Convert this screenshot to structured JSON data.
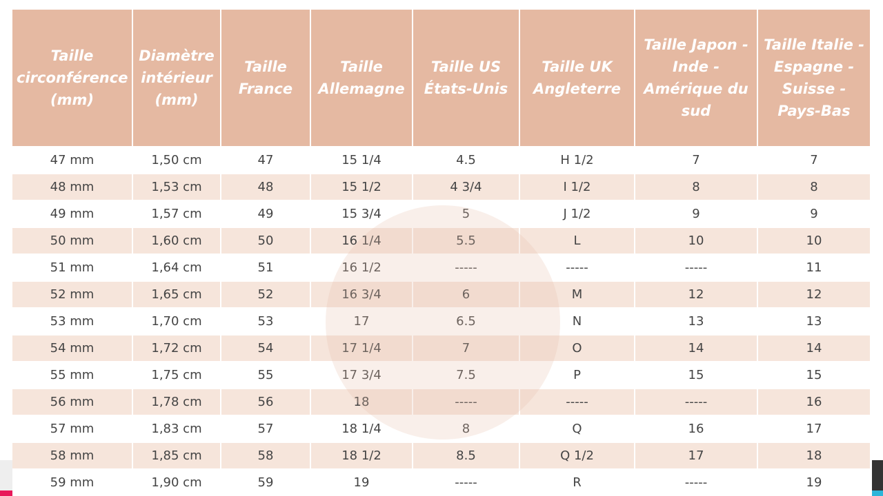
{
  "table": {
    "headers": [
      "Taille circonférence (mm)",
      "Diamètre intérieur (mm)",
      "Taille France",
      "Taille Allemagne",
      "Taille US États-Unis",
      "Taille UK Angleterre",
      "Taille Japon - Inde - Amérique du sud",
      "Taille Italie - Espagne - Suisse - Pays-Bas"
    ],
    "rows": [
      [
        "47 mm",
        "1,50 cm",
        "47",
        "15 1/4",
        "4.5",
        "H 1/2",
        "7",
        "7"
      ],
      [
        "48 mm",
        "1,53 cm",
        "48",
        "15 1/2",
        "4 3/4",
        "I 1/2",
        "8",
        "8"
      ],
      [
        "49 mm",
        "1,57 cm",
        "49",
        "15 3/4",
        "5",
        "J 1/2",
        "9",
        "9"
      ],
      [
        "50 mm",
        "1,60 cm",
        "50",
        "16 1/4",
        "5.5",
        "L",
        "10",
        "10"
      ],
      [
        "51 mm",
        "1,64 cm",
        "51",
        "16 1/2",
        "-----",
        "-----",
        "-----",
        "11"
      ],
      [
        "52 mm",
        "1,65 cm",
        "52",
        "16 3/4",
        "6",
        "M",
        "12",
        "12"
      ],
      [
        "53 mm",
        "1,70 cm",
        "53",
        "17",
        "6.5",
        "N",
        "13",
        "13"
      ],
      [
        "54 mm",
        "1,72 cm",
        "54",
        "17 1/4",
        "7",
        "O",
        "14",
        "14"
      ],
      [
        "55 mm",
        "1,75 cm",
        "55",
        "17 3/4",
        "7.5",
        "P",
        "15",
        "15"
      ],
      [
        "56 mm",
        "1,78 cm",
        "56",
        "18",
        "-----",
        "-----",
        "-----",
        "16"
      ],
      [
        "57 mm",
        "1,83 cm",
        "57",
        "18 1/4",
        "8",
        "Q",
        "16",
        "17"
      ],
      [
        "58 mm",
        "1,85 cm",
        "58",
        "18 1/2",
        "8.5",
        "Q 1/2",
        "17",
        "18"
      ],
      [
        "59 mm",
        "1,90 cm",
        "59",
        "19",
        "-----",
        "R",
        "-----",
        "19"
      ]
    ]
  }
}
